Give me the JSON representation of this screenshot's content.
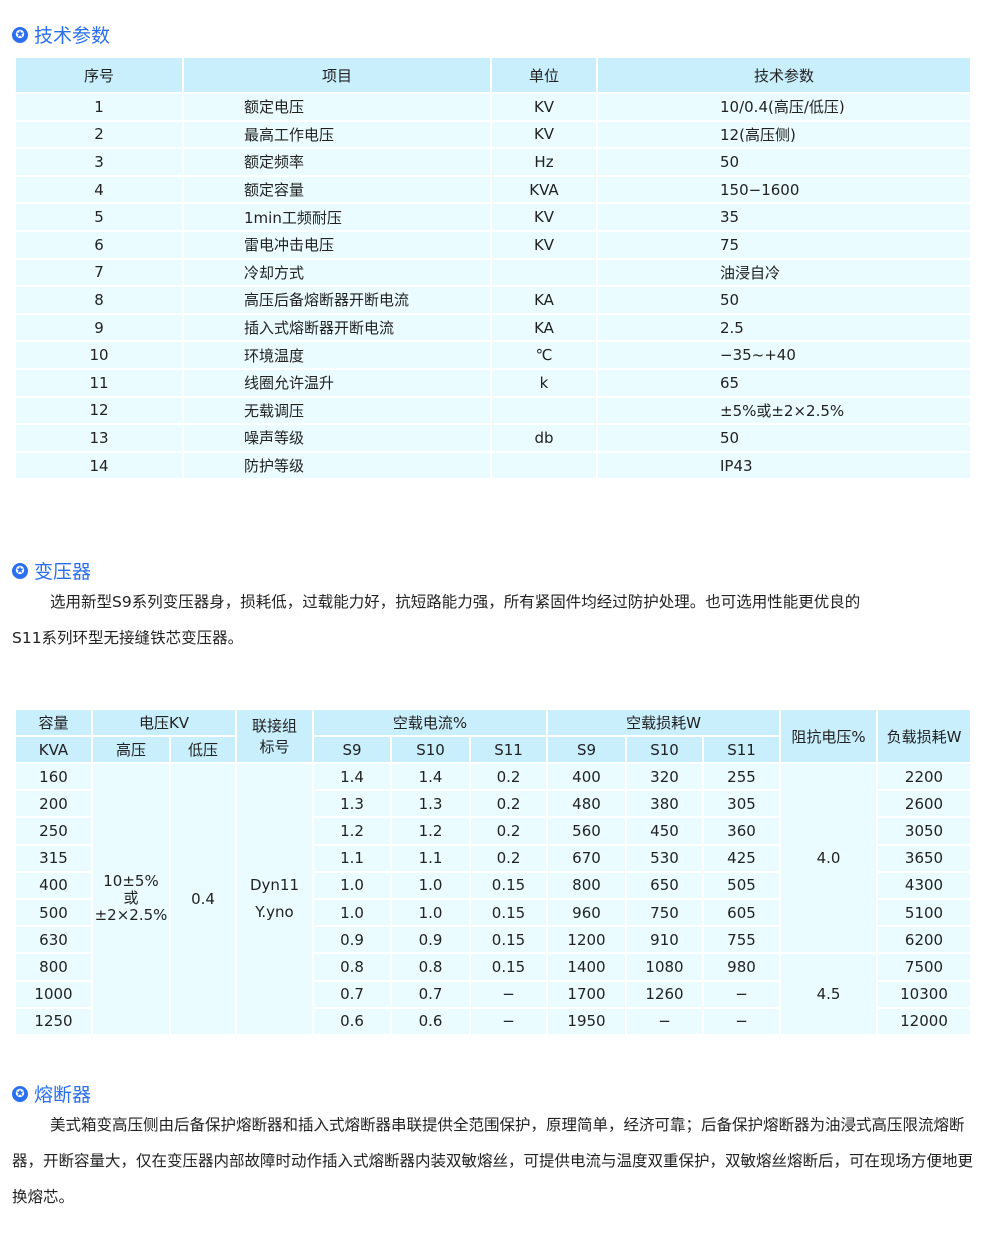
{
  "sections": {
    "tech": "技术参数",
    "transformer": "变压器",
    "fuse": "熔断器"
  },
  "icon": "star-circle-icon",
  "colors": {
    "accent": "#2a6ff0",
    "header_bg": "#c9eefc",
    "row_bg": "#eafcff"
  },
  "tech_table": {
    "headers": [
      "序号",
      "项目",
      "单位",
      "技术参数"
    ],
    "rows": [
      [
        "1",
        "额定电压",
        "KV",
        "10/0.4(高压/低压)"
      ],
      [
        "2",
        "最高工作电压",
        "KV",
        "12(高压侧)"
      ],
      [
        "3",
        "额定频率",
        "Hz",
        "50"
      ],
      [
        "4",
        "额定容量",
        "KVA",
        "150−1600"
      ],
      [
        "5",
        "1min工频耐压",
        "KV",
        "35"
      ],
      [
        "6",
        "雷电冲击电压",
        "KV",
        "75"
      ],
      [
        "7",
        "冷却方式",
        "",
        "油浸自冷"
      ],
      [
        "8",
        "高压后备熔断器开断电流",
        "KA",
        "50"
      ],
      [
        "9",
        "插入式熔断器开断电流",
        "KA",
        "2.5"
      ],
      [
        "10",
        "环境温度",
        "℃",
        "−35~+40"
      ],
      [
        "11",
        "线圈允许温升",
        "k",
        "65"
      ],
      [
        "12",
        "无载调压",
        "",
        "±5%或±2×2.5%"
      ],
      [
        "13",
        "噪声等级",
        "db",
        "50"
      ],
      [
        "14",
        "防护等级",
        "",
        "IP43"
      ]
    ]
  },
  "transformer_text_1": "选用新型S9系列变压器身，损耗低，过载能力好，抗短路能力强，所有紧固件均经过防护处理。也可选用性能更优良的",
  "transformer_text_2": "S11系列环型无接缝铁芯变压器。",
  "spec_table": {
    "h": {
      "cap1": "容量",
      "cap2": "KVA",
      "volt": "电压KV",
      "hv": "高压",
      "lv": "低压",
      "conn1": "联接组",
      "conn2": "标号",
      "noload_current": "空载电流%",
      "noload_loss": "空载损耗W",
      "s9": "S9",
      "s10": "S10",
      "s11": "S11",
      "impedance": "阻抗电压%",
      "load_loss": "负载损耗W"
    },
    "hv_value": [
      "10±5%",
      "或",
      "±2×2.5%"
    ],
    "lv_value": "0.4",
    "conn_value": [
      "Dyn11",
      "Y.yno"
    ],
    "impedance_values": [
      "4.0",
      "4.5"
    ],
    "rows": [
      [
        "160",
        "1.4",
        "1.4",
        "0.2",
        "400",
        "320",
        "255",
        "2200"
      ],
      [
        "200",
        "1.3",
        "1.3",
        "0.2",
        "480",
        "380",
        "305",
        "2600"
      ],
      [
        "250",
        "1.2",
        "1.2",
        "0.2",
        "560",
        "450",
        "360",
        "3050"
      ],
      [
        "315",
        "1.1",
        "1.1",
        "0.2",
        "670",
        "530",
        "425",
        "3650"
      ],
      [
        "400",
        "1.0",
        "1.0",
        "0.15",
        "800",
        "650",
        "505",
        "4300"
      ],
      [
        "500",
        "1.0",
        "1.0",
        "0.15",
        "960",
        "750",
        "605",
        "5100"
      ],
      [
        "630",
        "0.9",
        "0.9",
        "0.15",
        "1200",
        "910",
        "755",
        "6200"
      ],
      [
        "800",
        "0.8",
        "0.8",
        "0.15",
        "1400",
        "1080",
        "980",
        "7500"
      ],
      [
        "1000",
        "0.7",
        "0.7",
        "−",
        "1700",
        "1260",
        "−",
        "10300"
      ],
      [
        "1250",
        "0.6",
        "0.6",
        "−",
        "1950",
        "−",
        "−",
        "12000"
      ]
    ]
  },
  "fuse_text": [
    "美式箱变高压侧由后备保护熔断器和插入式熔断器串联提供全范围保护，原理简单，经济可靠；后备保护熔断器为油浸式高压限流熔断",
    "器，开断容量大，仅在变压器内部故障时动作插入式熔断器内装双敏熔丝，可提供电流与温度双重保护，双敏熔丝熔断后，可在现场方便地更",
    "换熔芯。"
  ]
}
